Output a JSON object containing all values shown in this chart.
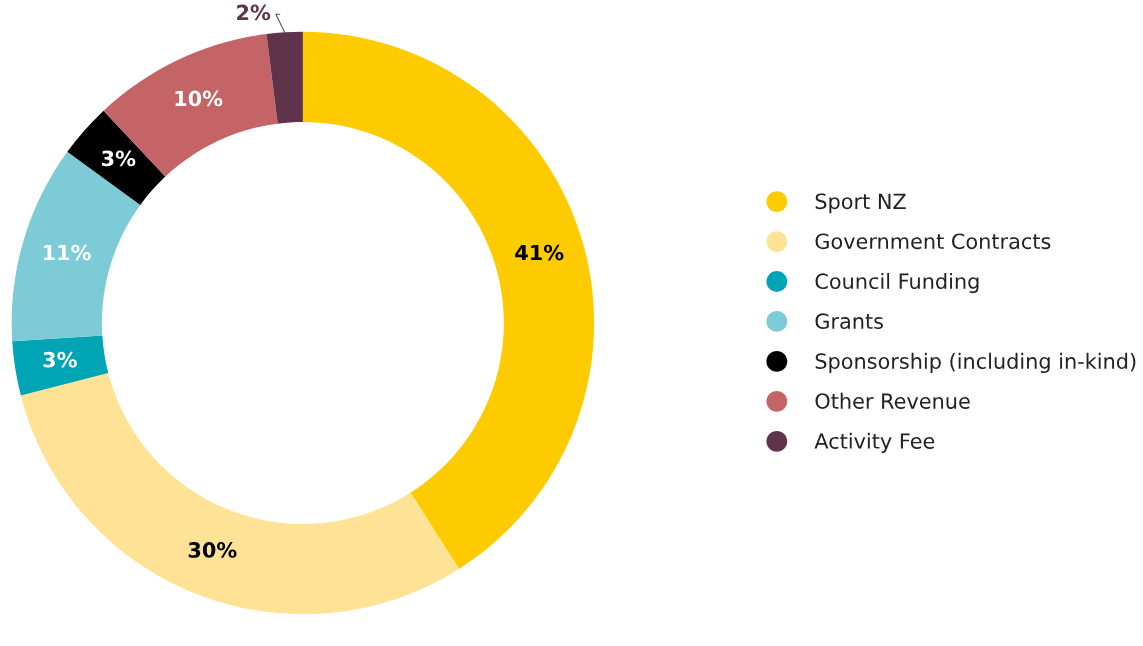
{
  "chart_data": {
    "type": "donut",
    "categories": [
      "Sport NZ",
      "Government Contracts",
      "Council Funding",
      "Grants",
      "Sponsorship (including in-kind)",
      "Other Revenue",
      "Activity Fee"
    ],
    "values": [
      41,
      30,
      3,
      11,
      3,
      10,
      2
    ],
    "colors": [
      "#fecb00",
      "#fee295",
      "#00a5b5",
      "#7ecbd8",
      "#000000",
      "#c46466",
      "#5f344b"
    ],
    "value_labels": [
      "41%",
      "30%",
      "3%",
      "11%",
      "3%",
      "10%",
      "2%"
    ],
    "legend": "right"
  }
}
